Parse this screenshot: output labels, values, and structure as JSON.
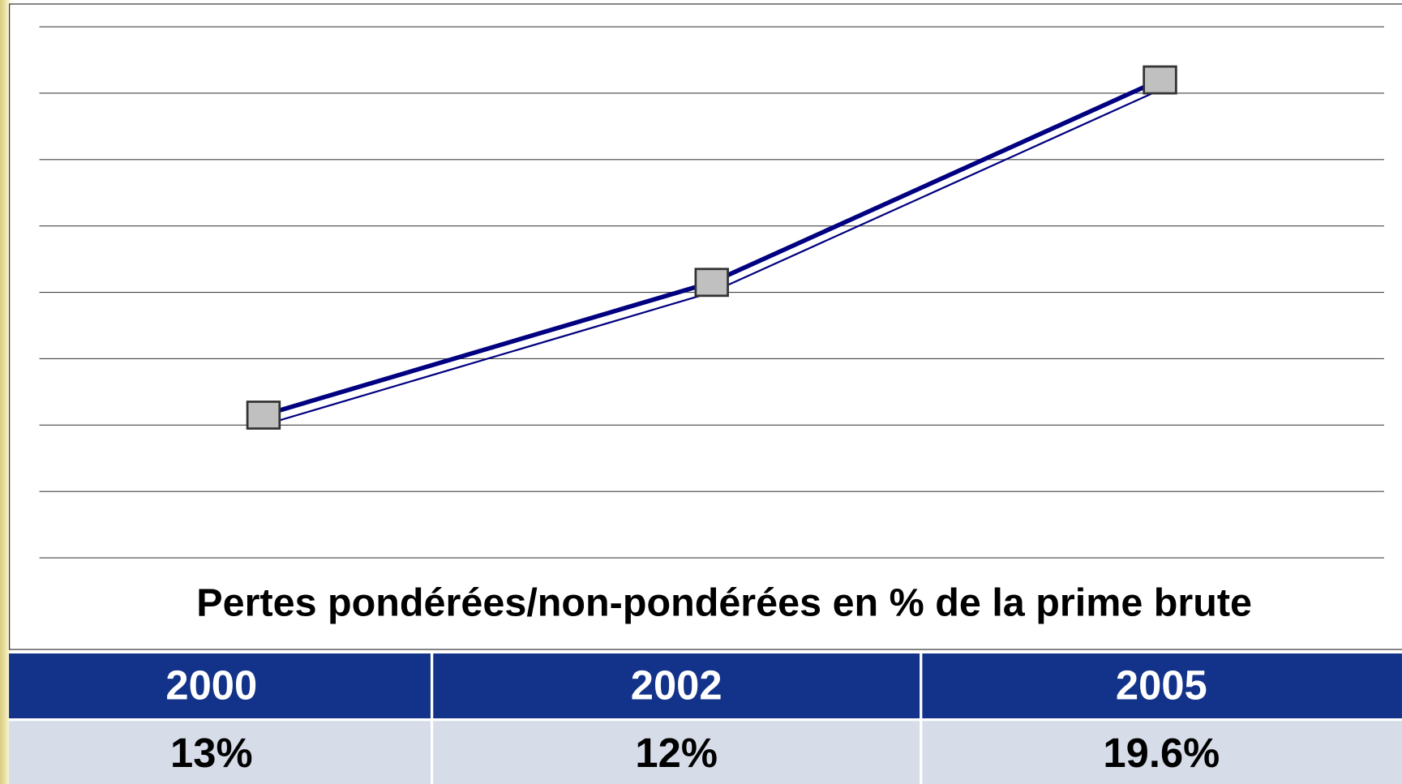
{
  "chart_data": {
    "type": "line",
    "title": "Pertes pondérées/non-pondérées en % de la prime brute",
    "categories": [
      "2000",
      "2002",
      "2005"
    ],
    "series": [
      {
        "color": "#000080",
        "values": [
          2.15,
          4.15,
          7.2
        ]
      },
      {
        "color": "#000080",
        "values": [
          2.0,
          4.0,
          7.05
        ]
      }
    ],
    "marker_color": "#c0c0c0",
    "ylim": [
      0,
      8
    ],
    "yticks": [
      0,
      1,
      2,
      3,
      4,
      5,
      6,
      7,
      8
    ],
    "grid": true
  },
  "table": {
    "rows": [
      [
        "13%",
        "12%",
        "19.6%"
      ]
    ]
  }
}
